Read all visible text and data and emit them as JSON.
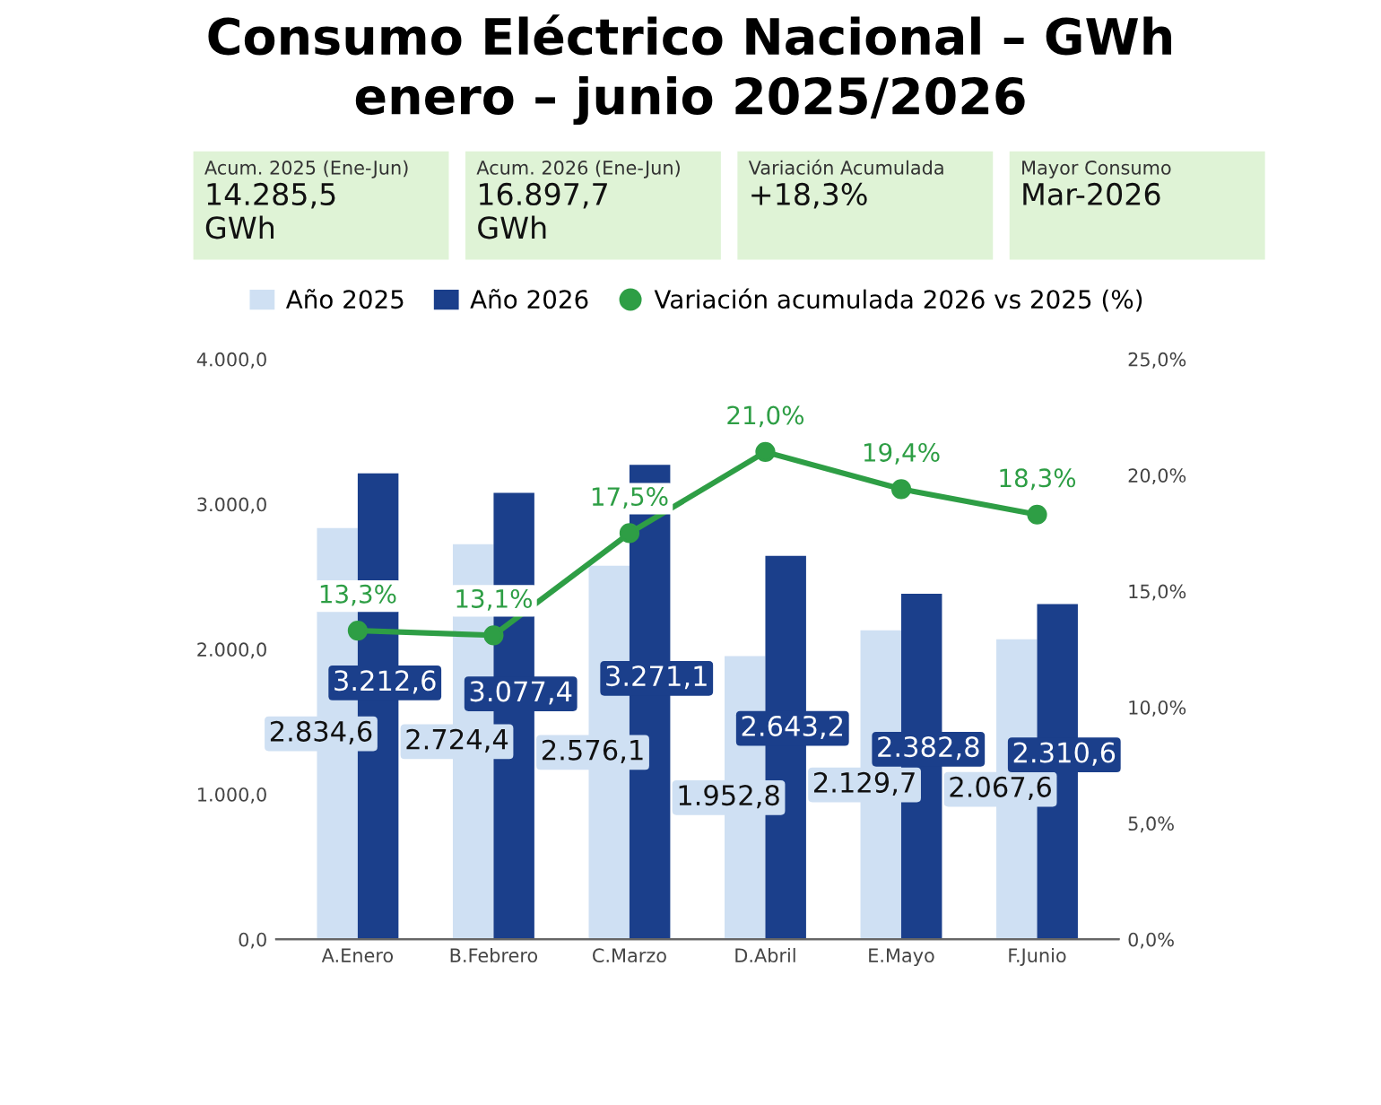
{
  "chart_data": {
    "type": "bar",
    "title": "Consumo Eléctrico Nacional – GWh\nenero – junio 2025/2026",
    "annotations": [
      "Acum. 2025 (Ene-Jun)",
      "14.285,5\nGWh",
      "Acum. 2026 (Ene-Jun)",
      "16.897,7\nGWh",
      "Variación Acumulada",
      "+18,3%",
      "Mayor Consumo",
      "Mar-2026"
    ],
    "categories": [
      "A.Enero",
      "B.Febrero",
      "C.Marzo",
      "D.Abril",
      "E.Mayo",
      "F.Junio"
    ],
    "series": [
      {
        "name": "Año 2025",
        "color": "#cfe0f3",
        "values": [
          2834.6,
          2724.4,
          2576.1,
          1952.8,
          2129.7,
          2067.6
        ],
        "value_labels": [
          "2.834,6",
          "2.724,4",
          "2.576,1",
          "1.952,8",
          "2.129,7",
          "2.067,6"
        ]
      },
      {
        "name": "Año 2026",
        "color": "#1b3f8b",
        "values": [
          3212.6,
          3077.4,
          3271.1,
          2643.2,
          2382.8,
          2310.6
        ],
        "value_labels": [
          "3.212,6",
          "3.077,4",
          "3.271,1",
          "2.643,2",
          "2.382,8",
          "2.310,6"
        ]
      },
      {
        "name": "Variación acumulada 2026 vs 2025 (%)",
        "type": "line",
        "axis": "y2",
        "color": "#2e9e45",
        "marker": "circle",
        "values": [
          13.3,
          13.1,
          17.5,
          21.0,
          19.4,
          18.3
        ],
        "value_labels": [
          "13,3%",
          "13,1%",
          "17,5%",
          "21,0%",
          "19,4%",
          "18,3%"
        ]
      }
    ],
    "ylim": [
      0,
      4000
    ],
    "yticks": [
      {
        "value": 0,
        "label": "0,0"
      },
      {
        "value": 1000,
        "label": "1.000,0"
      },
      {
        "value": 2000,
        "label": "2.000,0"
      },
      {
        "value": 3000,
        "label": "3.000,0"
      },
      {
        "value": 4000,
        "label": "4.000,0"
      }
    ],
    "y2lim": [
      0,
      25
    ],
    "y2ticks": [
      {
        "value": 0,
        "label": "0,0%"
      },
      {
        "value": 5,
        "label": "5,0%"
      },
      {
        "value": 10,
        "label": "10,0%"
      },
      {
        "value": 15,
        "label": "15,0%"
      },
      {
        "value": 20,
        "label": "20,0%"
      },
      {
        "value": 25,
        "label": "25,0%"
      }
    ],
    "grid": false,
    "legend": "top"
  }
}
